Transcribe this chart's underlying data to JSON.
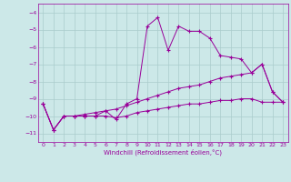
{
  "xlabel": "Windchill (Refroidissement éolien,°C)",
  "bg_color": "#cce8e8",
  "line_color": "#990099",
  "grid_color": "#aacccc",
  "xlim": [
    -0.5,
    23.5
  ],
  "ylim": [
    -11.5,
    -3.5
  ],
  "yticks": [
    -11,
    -10,
    -9,
    -8,
    -7,
    -6,
    -5,
    -4
  ],
  "xticks": [
    0,
    1,
    2,
    3,
    4,
    5,
    6,
    7,
    8,
    9,
    10,
    11,
    12,
    13,
    14,
    15,
    16,
    17,
    18,
    19,
    20,
    21,
    22,
    23
  ],
  "series1_y": [
    -9.3,
    -10.8,
    -10.0,
    -10.0,
    -10.0,
    -10.0,
    -9.7,
    -10.2,
    -9.3,
    -9.0,
    -4.8,
    -4.3,
    -6.2,
    -4.8,
    -5.1,
    -5.1,
    -5.5,
    -6.5,
    -6.6,
    -6.7,
    -7.5,
    -7.0,
    -8.6,
    -9.2
  ],
  "series2_y": [
    -9.3,
    -10.8,
    -10.0,
    -10.0,
    -9.9,
    -9.8,
    -9.7,
    -9.6,
    -9.4,
    -9.2,
    -9.0,
    -8.8,
    -8.6,
    -8.4,
    -8.3,
    -8.2,
    -8.0,
    -7.8,
    -7.7,
    -7.6,
    -7.5,
    -7.0,
    -8.6,
    -9.2
  ],
  "series3_y": [
    -9.3,
    -10.8,
    -10.0,
    -10.0,
    -10.0,
    -10.0,
    -10.0,
    -10.1,
    -10.0,
    -9.8,
    -9.7,
    -9.6,
    -9.5,
    -9.4,
    -9.3,
    -9.3,
    -9.2,
    -9.1,
    -9.1,
    -9.0,
    -9.0,
    -9.2,
    -9.2,
    -9.2
  ]
}
